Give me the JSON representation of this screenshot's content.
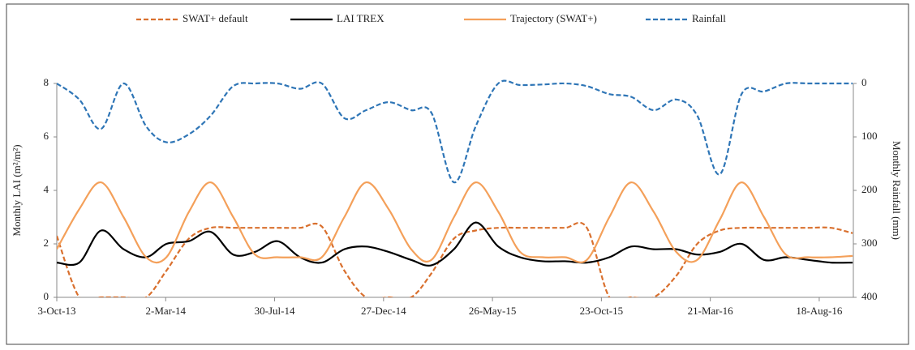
{
  "chart_data": {
    "type": "line",
    "x": [
      "2013-10-03",
      "2013-11-03",
      "2013-12-03",
      "2014-01-03",
      "2014-02-03",
      "2014-03-03",
      "2014-04-03",
      "2014-05-03",
      "2014-06-03",
      "2014-07-03",
      "2014-08-03",
      "2014-09-03",
      "2014-10-03",
      "2014-11-03",
      "2014-12-03",
      "2015-01-03",
      "2015-02-03",
      "2015-03-03",
      "2015-04-03",
      "2015-05-03",
      "2015-06-03",
      "2015-07-03",
      "2015-08-03",
      "2015-09-03",
      "2015-10-03",
      "2015-11-03",
      "2015-12-03",
      "2016-01-03",
      "2016-02-03",
      "2016-03-03",
      "2016-04-03",
      "2016-05-03",
      "2016-06-03",
      "2016-07-03",
      "2016-08-03",
      "2016-09-03",
      "2016-10-03"
    ],
    "series": [
      {
        "name": "SWAT+ default",
        "color": "#d9702e",
        "line_style": "dashed",
        "axis": "y",
        "values": [
          2.3,
          0,
          0,
          0,
          0,
          1.0,
          2.2,
          2.6,
          2.6,
          2.6,
          2.6,
          2.6,
          2.65,
          1.0,
          0,
          0,
          0,
          0.9,
          2.2,
          2.5,
          2.6,
          2.6,
          2.6,
          2.6,
          2.6,
          0,
          0,
          0,
          0.8,
          2.0,
          2.5,
          2.6,
          2.6,
          2.6,
          2.6,
          2.6,
          2.4
        ]
      },
      {
        "name": "LAI TREX",
        "color": "#000000",
        "line_style": "solid",
        "axis": "y",
        "values": [
          1.3,
          1.3,
          2.5,
          1.8,
          1.5,
          2.0,
          2.1,
          2.45,
          1.6,
          1.7,
          2.1,
          1.5,
          1.3,
          1.8,
          1.9,
          1.7,
          1.4,
          1.2,
          1.8,
          2.8,
          1.9,
          1.5,
          1.35,
          1.35,
          1.3,
          1.5,
          1.9,
          1.8,
          1.8,
          1.6,
          1.7,
          2.0,
          1.4,
          1.5,
          1.4,
          1.3,
          1.3
        ]
      },
      {
        "name": "Trajectory (SWAT+)",
        "color": "#f4a05a",
        "line_style": "solid",
        "axis": "y",
        "values": [
          1.8,
          3.3,
          4.3,
          3.0,
          1.5,
          1.5,
          3.2,
          4.3,
          3.0,
          1.6,
          1.5,
          1.5,
          1.5,
          3.0,
          4.3,
          3.3,
          1.8,
          1.4,
          3.0,
          4.3,
          3.2,
          1.7,
          1.5,
          1.5,
          1.4,
          3.0,
          4.3,
          3.2,
          1.7,
          1.4,
          2.9,
          4.3,
          3.0,
          1.6,
          1.5,
          1.5,
          1.55
        ]
      },
      {
        "name": "Rainfall",
        "color": "#2e75b6",
        "line_style": "dashed",
        "axis": "y2",
        "values": [
          0,
          30,
          85,
          0,
          80,
          110,
          95,
          60,
          5,
          0,
          0,
          10,
          0,
          65,
          50,
          35,
          50,
          55,
          185,
          80,
          0,
          3,
          2,
          0,
          5,
          20,
          25,
          50,
          30,
          60,
          170,
          20,
          15,
          0,
          0,
          0,
          0
        ]
      }
    ],
    "xlim": [
      "2013-10-03",
      "2016-10-04"
    ],
    "xticks": [
      {
        "value": "2013-10-03",
        "label": "3-Oct-13"
      },
      {
        "value": "2014-03-02",
        "label": "2-Mar-14"
      },
      {
        "value": "2014-07-30",
        "label": "30-Jul-14"
      },
      {
        "value": "2014-12-27",
        "label": "27-Dec-14"
      },
      {
        "value": "2015-05-26",
        "label": "26-May-15"
      },
      {
        "value": "2015-10-23",
        "label": "23-Oct-15"
      },
      {
        "value": "2016-03-21",
        "label": "21-Mar-16"
      },
      {
        "value": "2016-08-18",
        "label": "18-Aug-16"
      }
    ],
    "ylim": [
      0,
      8
    ],
    "yticks": [
      0,
      2,
      4,
      6,
      8
    ],
    "y2lim": [
      400,
      0
    ],
    "y2ticks": [
      0,
      100,
      200,
      300,
      400
    ],
    "ylabel": "Monthly LAI (m²/m²)",
    "y2label": "Monthly Rainfall (mm)",
    "legend": "top"
  }
}
